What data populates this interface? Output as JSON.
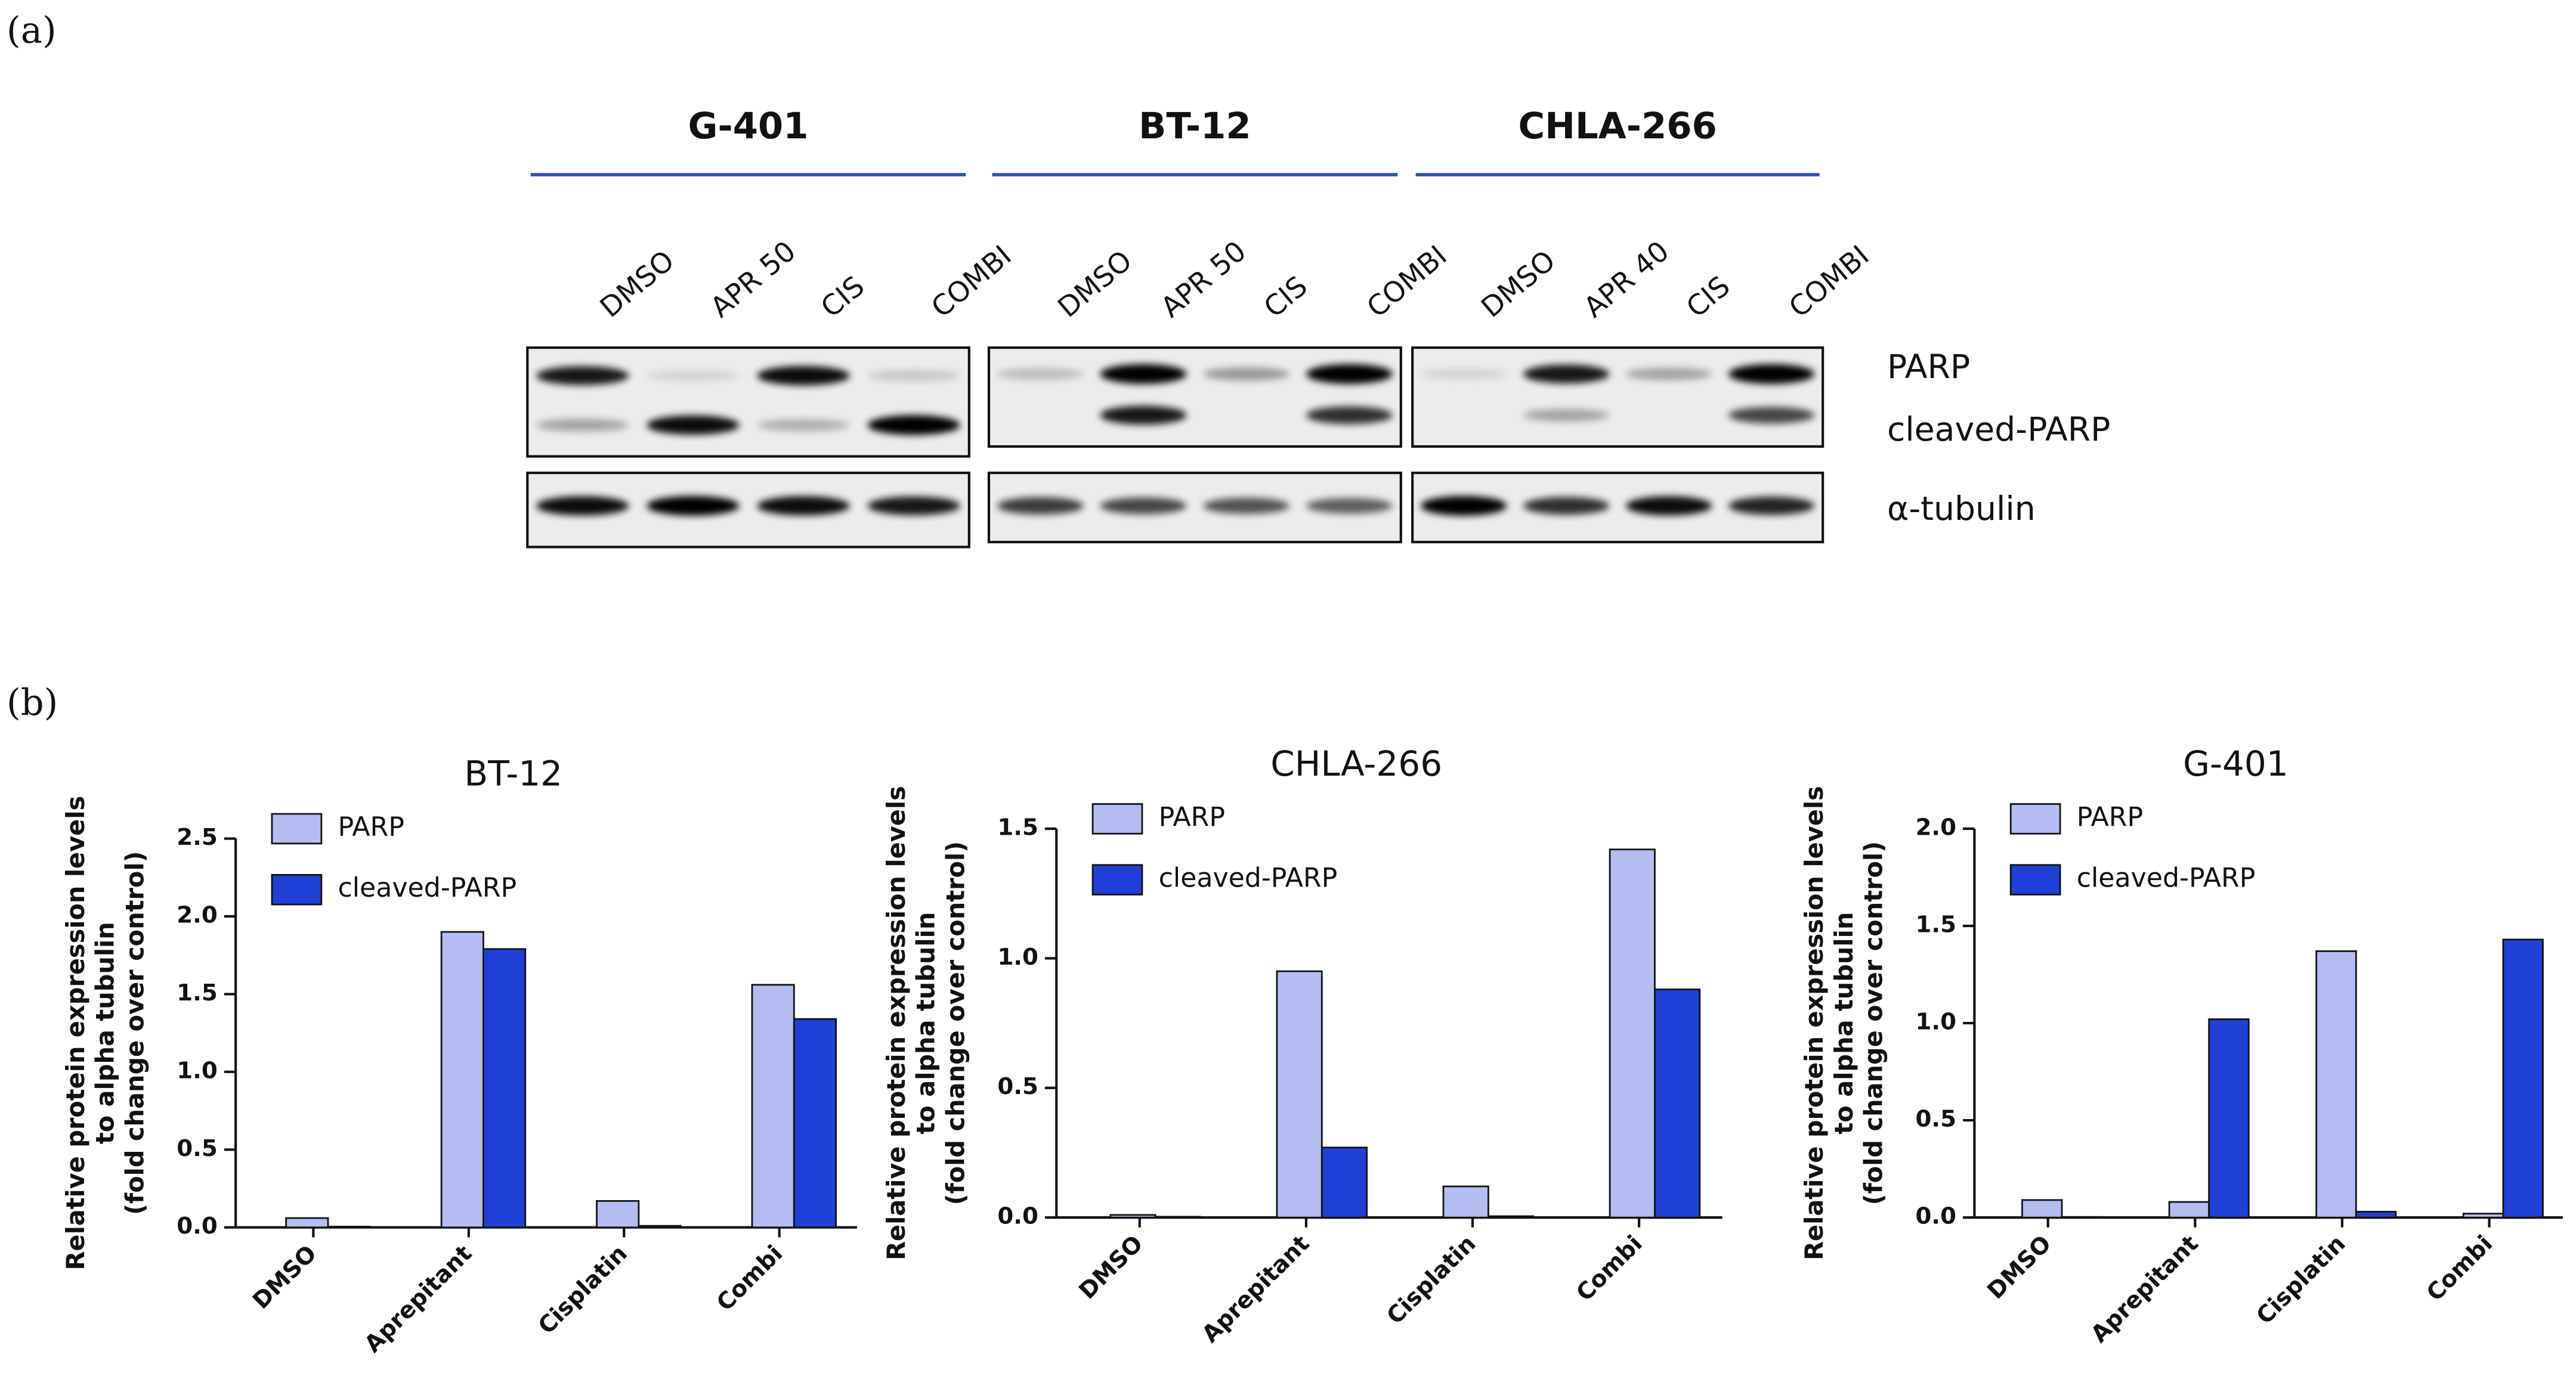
{
  "panel_labels": [
    "(a)",
    "(b)"
  ],
  "blot": {
    "cell_lines": [
      {
        "name": "G-401",
        "lanes": [
          "DMSO",
          "APR 50",
          "CIS",
          "COMBI"
        ]
      },
      {
        "name": "BT-12",
        "lanes": [
          "DMSO",
          "APR 50",
          "CIS",
          "COMBI"
        ]
      },
      {
        "name": "CHLA-266",
        "lanes": [
          "DMSO",
          "APR 40",
          "CIS",
          "COMBI"
        ]
      }
    ],
    "proteins": [
      "PARP",
      "cleaved-PARP",
      "α-tubulin"
    ]
  },
  "chart_data": [
    {
      "type": "bar",
      "title": "BT-12",
      "y_label": [
        "Relative protein expression levels",
        "to alpha tubulin",
        "(fold change over control)"
      ],
      "categories": [
        "DMSO",
        "Aprepitant",
        "Cisplatin",
        "Combi"
      ],
      "series": [
        {
          "name": "PARP",
          "color": "#b4bdf2",
          "values": [
            0.06,
            1.9,
            0.17,
            1.56
          ]
        },
        {
          "name": "cleaved-PARP",
          "color": "#1f3fd6",
          "values": [
            0.005,
            1.79,
            0.01,
            1.34
          ]
        }
      ],
      "ylim": [
        0,
        2.5
      ],
      "yticks": [
        {
          "value": 0,
          "label": "0.0"
        },
        0.5,
        {
          "value": 1,
          "label": "1.0"
        },
        1.5,
        {
          "value": 2,
          "label": "2.0"
        },
        2.5
      ]
    },
    {
      "type": "bar",
      "title": "CHLA-266",
      "y_label": [
        "Relative protein expression levels",
        "to alpha tubulin",
        "(fold change over control)"
      ],
      "categories": [
        "DMSO",
        "Aprepitant",
        "Cisplatin",
        "Combi"
      ],
      "series": [
        {
          "name": "PARP",
          "color": "#b4bdf2",
          "values": [
            0.01,
            0.95,
            0.12,
            1.42
          ]
        },
        {
          "name": "cleaved-PARP",
          "color": "#1f3fd6",
          "values": [
            0.003,
            0.27,
            0.005,
            0.88
          ]
        }
      ],
      "ylim": [
        0,
        1.5
      ],
      "yticks": [
        {
          "value": 0,
          "label": "0.0"
        },
        0.5,
        {
          "value": 1,
          "label": "1.0"
        },
        1.5
      ]
    },
    {
      "type": "bar",
      "title": "G-401",
      "y_label": [
        "Relative protein expression levels",
        "to alpha tubulin",
        "(fold change over control)"
      ],
      "categories": [
        "DMSO",
        "Aprepitant",
        "Cisplatin",
        "Combi"
      ],
      "series": [
        {
          "name": "PARP",
          "color": "#b4bdf2",
          "values": [
            0.09,
            0.08,
            1.37,
            0.02
          ]
        },
        {
          "name": "cleaved-PARP",
          "color": "#1f3fd6",
          "values": [
            0.003,
            1.02,
            0.03,
            1.43
          ]
        }
      ],
      "ylim": [
        0,
        2
      ],
      "yticks": [
        {
          "value": 0,
          "label": "0.0"
        },
        0.5,
        {
          "value": 1,
          "label": "1.0"
        },
        1.5,
        {
          "value": 2,
          "label": "2.0"
        }
      ]
    }
  ]
}
